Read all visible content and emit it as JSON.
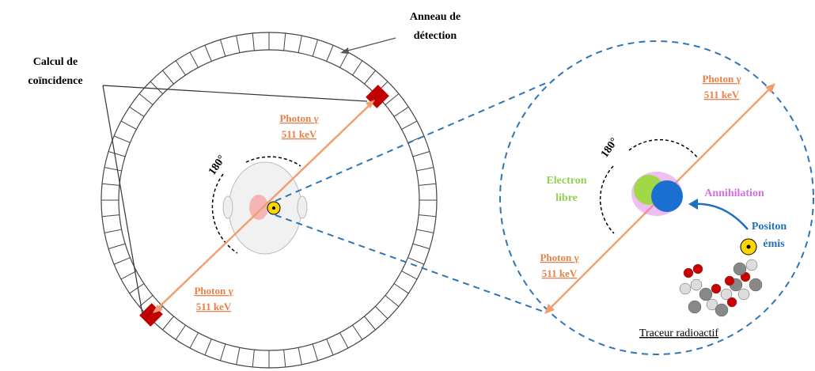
{
  "labels": {
    "ring": [
      "Anneau de",
      "détection"
    ],
    "coincidence": [
      "Calcul de",
      "coïncidence"
    ],
    "photon_top_left": [
      "Photon γ",
      "511 keV"
    ],
    "photon_bottom_left": [
      "Photon γ",
      "511 keV"
    ],
    "angle_left": "180°",
    "photon_top_right": [
      "Photon γ",
      "511 keV"
    ],
    "photon_bottom_right": [
      "Photon γ",
      "511 keV"
    ],
    "angle_right": "180°",
    "electron": [
      "Electron",
      "libre"
    ],
    "annihilation": "Annihilation",
    "positon": [
      "Positon",
      "émis"
    ],
    "tracer": "Traceur radioactif"
  }
}
